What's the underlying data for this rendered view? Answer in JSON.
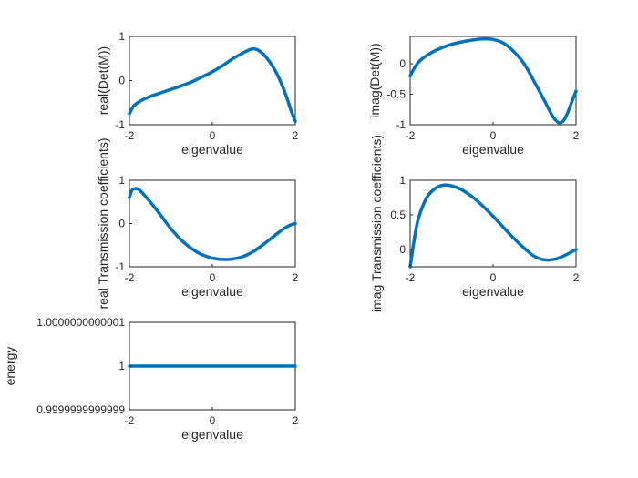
{
  "chart_data": [
    {
      "type": "line",
      "xlabel": "eigenvalue",
      "ylabel": "real(Det(M))",
      "xlim": [
        -2,
        2
      ],
      "ylim": [
        -1,
        1
      ],
      "xticks": [
        -2,
        0,
        2
      ],
      "xtick_labels": [
        "-2",
        "0",
        "2"
      ],
      "yticks": [
        -1,
        0,
        1
      ],
      "ytick_labels": [
        "-1",
        "0",
        "1"
      ],
      "grid": false,
      "series": [
        {
          "color": "#0072BD",
          "x": [
            -2,
            -1.9,
            -1.75,
            -1.5,
            -1.25,
            -1,
            -0.75,
            -0.5,
            -0.25,
            0,
            0.25,
            0.5,
            0.75,
            0.9,
            1.0,
            1.1,
            1.25,
            1.4,
            1.5,
            1.6,
            1.7,
            1.8,
            1.9,
            2.0
          ],
          "y": [
            -0.75,
            -0.58,
            -0.47,
            -0.36,
            -0.28,
            -0.2,
            -0.12,
            -0.03,
            0.08,
            0.2,
            0.34,
            0.5,
            0.63,
            0.7,
            0.72,
            0.69,
            0.58,
            0.4,
            0.25,
            0.07,
            -0.15,
            -0.4,
            -0.68,
            -0.92
          ]
        }
      ]
    },
    {
      "type": "line",
      "xlabel": "eigenvalue",
      "ylabel": "imag(Det(M))",
      "xlim": [
        -2,
        2
      ],
      "ylim": [
        -1,
        0.45
      ],
      "xticks": [
        -2,
        0,
        2
      ],
      "xtick_labels": [
        "-2",
        "0",
        "2"
      ],
      "yticks": [
        -1,
        -0.5,
        0
      ],
      "ytick_labels": [
        "-1",
        "-0.5",
        "0"
      ],
      "grid": false,
      "series": [
        {
          "color": "#0072BD",
          "x": [
            -2,
            -1.9,
            -1.75,
            -1.5,
            -1.25,
            -1,
            -0.75,
            -0.5,
            -0.25,
            0,
            0.25,
            0.5,
            0.75,
            1.0,
            1.25,
            1.4,
            1.5,
            1.6,
            1.7,
            1.8,
            1.9,
            2.0
          ],
          "y": [
            -0.2,
            -0.07,
            0.06,
            0.18,
            0.26,
            0.32,
            0.36,
            0.39,
            0.41,
            0.4,
            0.34,
            0.2,
            0.0,
            -0.3,
            -0.62,
            -0.82,
            -0.92,
            -0.97,
            -0.93,
            -0.8,
            -0.62,
            -0.45
          ]
        }
      ]
    },
    {
      "type": "line",
      "xlabel": "eigenvalue",
      "ylabel": "real Transmission coefficients)",
      "xlim": [
        -2,
        2
      ],
      "ylim": [
        -1,
        1
      ],
      "xticks": [
        -2,
        0,
        2
      ],
      "xtick_labels": [
        "-2",
        "0",
        "2"
      ],
      "yticks": [
        -1,
        0,
        1
      ],
      "ytick_labels": [
        "-1",
        "0",
        "1"
      ],
      "grid": false,
      "series": [
        {
          "color": "#0072BD",
          "x": [
            -2,
            -1.95,
            -1.9,
            -1.8,
            -1.7,
            -1.5,
            -1.25,
            -1,
            -0.75,
            -0.5,
            -0.25,
            0,
            0.25,
            0.5,
            0.75,
            1.0,
            1.25,
            1.5,
            1.75,
            1.9,
            2.0
          ],
          "y": [
            0.6,
            0.75,
            0.8,
            0.8,
            0.72,
            0.5,
            0.2,
            -0.12,
            -0.38,
            -0.58,
            -0.72,
            -0.8,
            -0.83,
            -0.82,
            -0.76,
            -0.64,
            -0.47,
            -0.28,
            -0.1,
            -0.03,
            0.0
          ]
        }
      ]
    },
    {
      "type": "line",
      "xlabel": "eigenvalue",
      "ylabel": "imag Transmission coefficients)",
      "xlim": [
        -2,
        2
      ],
      "ylim": [
        -0.25,
        1
      ],
      "xticks": [
        -2,
        0,
        2
      ],
      "xtick_labels": [
        "-2",
        "0",
        "2"
      ],
      "yticks": [
        0,
        0.5,
        1
      ],
      "ytick_labels": [
        "0",
        "0.5",
        "1"
      ],
      "grid": false,
      "series": [
        {
          "color": "#0072BD",
          "x": [
            -2,
            -1.95,
            -1.9,
            -1.8,
            -1.6,
            -1.4,
            -1.2,
            -1.0,
            -0.75,
            -0.5,
            -0.25,
            0,
            0.25,
            0.5,
            0.75,
            1.0,
            1.25,
            1.5,
            1.75,
            2.0
          ],
          "y": [
            -0.25,
            -0.05,
            0.15,
            0.45,
            0.75,
            0.88,
            0.93,
            0.92,
            0.86,
            0.76,
            0.63,
            0.48,
            0.32,
            0.16,
            0.02,
            -0.1,
            -0.15,
            -0.14,
            -0.08,
            0.0
          ]
        }
      ]
    },
    {
      "type": "line",
      "xlabel": "eigenvalue",
      "ylabel": "energy",
      "xlim": [
        -2,
        2
      ],
      "ylim": [
        0.9999999999999,
        1.0000000000001
      ],
      "xticks": [
        -2,
        0,
        2
      ],
      "xtick_labels": [
        "-2",
        "0",
        "2"
      ],
      "yticks": [
        0.9999999999999,
        1,
        1.0000000000001
      ],
      "ytick_labels": [
        "0.9999999999999",
        "1",
        "1.0000000000001"
      ],
      "grid": false,
      "series": [
        {
          "color": "#0072BD",
          "x": [
            -2,
            2
          ],
          "y": [
            1,
            1
          ]
        }
      ]
    }
  ]
}
